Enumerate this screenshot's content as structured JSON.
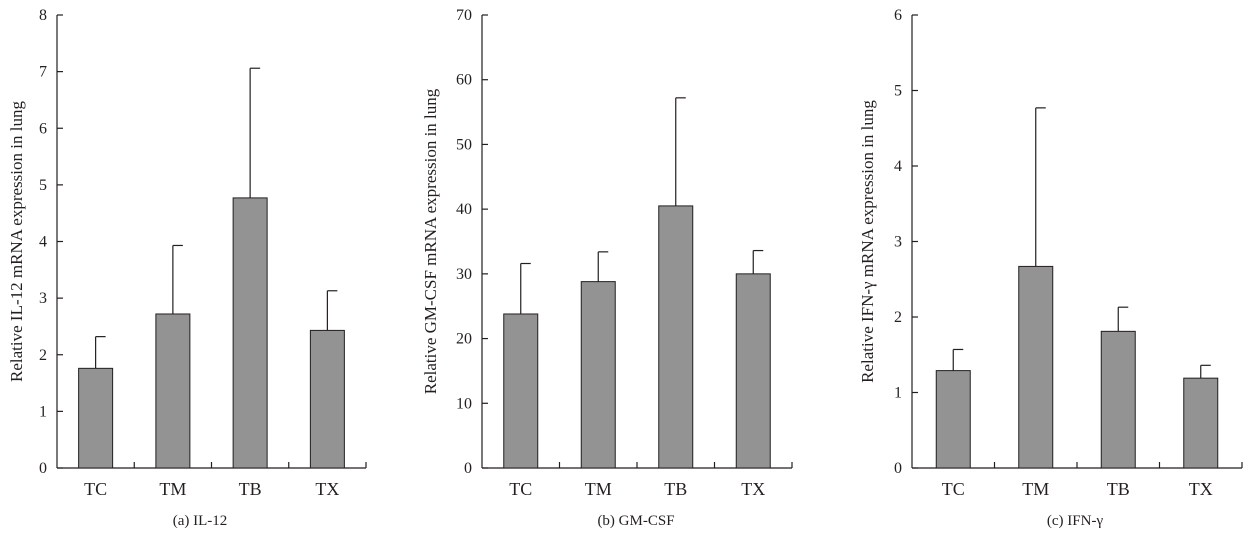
{
  "colors": {
    "bar": "#939393",
    "axis": "#231f20"
  },
  "chart_data": [
    {
      "type": "bar",
      "panel_caption": "(a) IL-12",
      "ylabel": "Relative IL-12 mRNA expression in lung",
      "categories": [
        "TC",
        "TM",
        "TB",
        "TX"
      ],
      "values": [
        1.76,
        2.72,
        4.77,
        2.43
      ],
      "errors": [
        0.56,
        1.21,
        2.29,
        0.7
      ],
      "ylim": [
        0,
        8
      ],
      "yticks": [
        0,
        1,
        2,
        3,
        4,
        5,
        6,
        7,
        8
      ],
      "grid": false
    },
    {
      "type": "bar",
      "panel_caption": "(b) GM-CSF",
      "ylabel": "Relative GM-CSF mRNA expression in lung",
      "categories": [
        "TC",
        "TM",
        "TB",
        "TX"
      ],
      "values": [
        23.8,
        28.8,
        40.5,
        30.0
      ],
      "errors": [
        7.8,
        4.6,
        16.7,
        3.6
      ],
      "ylim": [
        0,
        70
      ],
      "yticks": [
        0,
        10,
        20,
        30,
        40,
        50,
        60,
        70
      ],
      "grid": false
    },
    {
      "type": "bar",
      "panel_caption": "(c) IFN-γ",
      "ylabel": "Relative IFN-γ mRNA expression in lung",
      "categories": [
        "TC",
        "TM",
        "TB",
        "TX"
      ],
      "values": [
        1.29,
        2.67,
        1.81,
        1.19
      ],
      "errors": [
        0.28,
        2.1,
        0.32,
        0.17
      ],
      "ylim": [
        0,
        6
      ],
      "yticks": [
        0,
        1,
        2,
        3,
        4,
        5,
        6
      ],
      "grid": false
    }
  ]
}
